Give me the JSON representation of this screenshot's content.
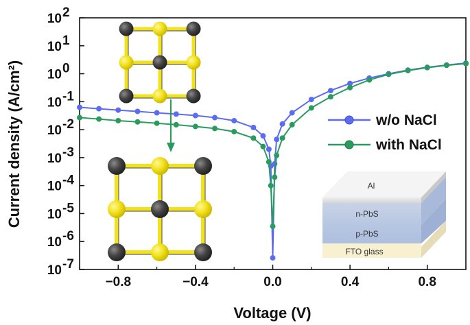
{
  "chart_data": {
    "type": "line",
    "xlabel": "Voltage (V)",
    "ylabel": "Current density (A/cm²)",
    "yscale": "log",
    "xlim": [
      -1.0,
      1.0
    ],
    "ylim": [
      1e-07,
      100
    ],
    "x_ticks": [
      -0.8,
      -0.4,
      0.0,
      0.4,
      0.8
    ],
    "x_tick_labels": [
      "−0.8",
      "−0.4",
      "0.0",
      "0.4",
      "0.8"
    ],
    "y_tick_exponents": [
      2,
      1,
      0,
      -1,
      -2,
      -3,
      -4,
      -5,
      -6,
      -7
    ],
    "y_tick_base": "10",
    "legend_position": "right",
    "series": [
      {
        "name": "w/o NaCl",
        "color": "#5b6cf0",
        "points": [
          [
            -1.0,
            0.063
          ],
          [
            -0.9,
            0.056
          ],
          [
            -0.8,
            0.05
          ],
          [
            -0.7,
            0.045
          ],
          [
            -0.6,
            0.04
          ],
          [
            -0.5,
            0.036
          ],
          [
            -0.4,
            0.032
          ],
          [
            -0.3,
            0.027
          ],
          [
            -0.2,
            0.021
          ],
          [
            -0.1,
            0.012
          ],
          [
            -0.05,
            0.006
          ],
          [
            -0.02,
            0.002
          ],
          [
            -0.01,
            0.0005
          ],
          [
            0.0,
            2.6e-07
          ],
          [
            0.01,
            0.0006
          ],
          [
            0.02,
            0.0045
          ],
          [
            0.05,
            0.016
          ],
          [
            0.1,
            0.04
          ],
          [
            0.2,
            0.12
          ],
          [
            0.3,
            0.25
          ],
          [
            0.4,
            0.45
          ],
          [
            0.5,
            0.7
          ],
          [
            0.6,
            1.0
          ],
          [
            0.7,
            1.35
          ],
          [
            0.8,
            1.7
          ],
          [
            0.9,
            2.05
          ],
          [
            1.0,
            2.4
          ]
        ]
      },
      {
        "name": "with NaCl",
        "color": "#2a9b5f",
        "points": [
          [
            -1.0,
            0.027
          ],
          [
            -0.9,
            0.024
          ],
          [
            -0.8,
            0.021
          ],
          [
            -0.7,
            0.019
          ],
          [
            -0.6,
            0.017
          ],
          [
            -0.5,
            0.015
          ],
          [
            -0.4,
            0.013
          ],
          [
            -0.3,
            0.011
          ],
          [
            -0.2,
            0.0085
          ],
          [
            -0.1,
            0.005
          ],
          [
            -0.05,
            0.0025
          ],
          [
            -0.02,
            0.0007
          ],
          [
            -0.01,
            0.0001
          ],
          [
            0.0,
            3.5e-06
          ],
          [
            0.01,
            0.0002
          ],
          [
            0.02,
            0.0012
          ],
          [
            0.05,
            0.005
          ],
          [
            0.1,
            0.015
          ],
          [
            0.2,
            0.06
          ],
          [
            0.3,
            0.15
          ],
          [
            0.4,
            0.32
          ],
          [
            0.5,
            0.6
          ],
          [
            0.6,
            0.95
          ],
          [
            0.7,
            1.3
          ],
          [
            0.8,
            1.65
          ],
          [
            0.9,
            2.0
          ],
          [
            1.0,
            2.3
          ]
        ]
      }
    ]
  },
  "device_stack": {
    "layers": [
      "Al",
      "n-PbS",
      "p-PbS",
      "FTO glass"
    ]
  },
  "colors": {
    "sulfur_atom": "#f2e21c",
    "lead_atom": "#444444",
    "arrow": "#2a9b5f"
  }
}
